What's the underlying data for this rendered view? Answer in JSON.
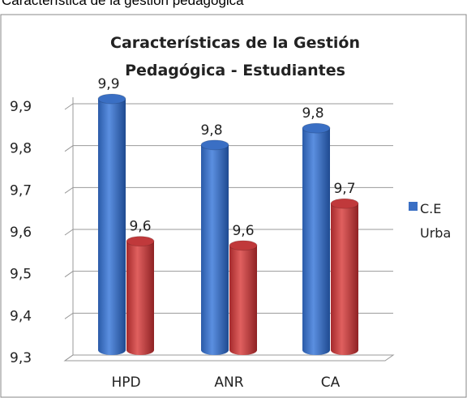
{
  "heading": "Característica de la gestión pedagógica",
  "chart_data": {
    "type": "bar",
    "title": "Características de la Gestión Pedagógica - Estudiantes",
    "categories": [
      "HPD",
      "ANR",
      "CA"
    ],
    "series": [
      {
        "name": "C.E Urba",
        "color": "#3a6fc4",
        "values": [
          9.9,
          9.79,
          9.83
        ],
        "value_labels": [
          "9,9",
          "9,8",
          "9,8"
        ]
      },
      {
        "color": "#c0393b",
        "values": [
          9.56,
          9.55,
          9.65
        ],
        "value_labels": [
          "9,6",
          "9,6",
          "9,7"
        ]
      }
    ],
    "ylim": [
      9.3,
      9.9
    ],
    "yticks": [
      {
        "value": 9.3,
        "label": "9,3"
      },
      {
        "value": 9.4,
        "label": "9,4"
      },
      {
        "value": 9.5,
        "label": "9,5"
      },
      {
        "value": 9.6,
        "label": "9,6"
      },
      {
        "value": 9.7,
        "label": "9,7"
      },
      {
        "value": 9.8,
        "label": "9,8"
      },
      {
        "value": 9.9,
        "label": "9,9"
      }
    ],
    "grid": true,
    "legend": "right"
  }
}
